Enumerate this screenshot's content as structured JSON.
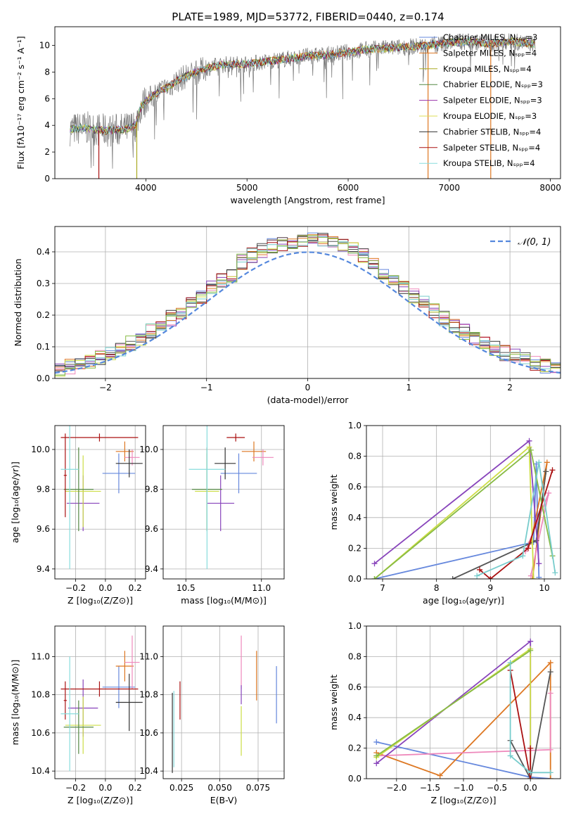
{
  "figure": {
    "title": "PLATE=1989, MJD=53772, FIBERID=0440, z=0.174",
    "series_colors": [
      "#6688dd",
      "#dd7722",
      "#ee88bb",
      "#555555",
      "#8844bb",
      "#ccdd44",
      "#333333",
      "#aa1111",
      "#77cccc",
      "#88bb44"
    ],
    "legend_colors": [
      "#6688dd",
      "#dd7722",
      "#aaaa22",
      "#558844",
      "#9933aa",
      "#dddd55",
      "#333333",
      "#aa1111",
      "#88dddd"
    ]
  },
  "chart_data": [
    {
      "id": "spectrum",
      "type": "line",
      "title": "PLATE=1989, MJD=53772, FIBERID=0440, z=0.174",
      "xlabel": "wavelength [Angstrom, rest frame]",
      "ylabel": "Flux [fλ10⁻¹⁷ erg cm⁻² s⁻¹ A⁻¹]",
      "xlim": [
        3100,
        8100
      ],
      "ylim": [
        0,
        11.4
      ],
      "xticks": [
        4000,
        5000,
        6000,
        7000,
        8000
      ],
      "yticks": [
        0,
        2,
        4,
        6,
        8,
        10
      ],
      "grid": false,
      "legend_position": "right",
      "continuum_x": [
        3250,
        3400,
        3600,
        3800,
        3900,
        3950,
        4000,
        4100,
        4200,
        4300,
        4400,
        4600,
        4800,
        5000,
        5200,
        5400,
        5600,
        5800,
        6000,
        6200,
        6400,
        6600,
        6800,
        7000,
        7200,
        7400,
        7600,
        7850
      ],
      "continuum_y": [
        3.7,
        3.8,
        3.6,
        3.7,
        4.0,
        5.4,
        5.8,
        6.4,
        6.8,
        7.3,
        7.7,
        8.3,
        8.6,
        8.6,
        8.8,
        9.0,
        9.2,
        9.3,
        9.5,
        9.7,
        9.8,
        9.9,
        10.0,
        10.2,
        10.3,
        10.1,
        10.3,
        10.1
      ],
      "legend": [
        "Chabrier MILES, Nₛₚₚ=3",
        "Salpeter MILES, Nₛₚₚ=4",
        "Kroupa MILES, Nₛₚₚ=4",
        "Chabrier ELODIE, Nₛₚₚ=3",
        "Salpeter ELODIE, Nₛₚₚ=3",
        "Kroupa ELODIE, Nₛₚₚ=3",
        "Chabrier STELIB, Nₛₚₚ=4",
        "Salpeter STELIB, Nₛₚₚ=4",
        "Kroupa STELIB, Nₛₚₚ=4"
      ]
    },
    {
      "id": "residuals",
      "type": "step",
      "xlabel": "(data-model)/error",
      "ylabel": "Normed distribution",
      "xlim": [
        -2.5,
        2.5
      ],
      "ylim": [
        0,
        0.48
      ],
      "xticks": [
        -2,
        -1,
        0,
        1,
        2
      ],
      "yticks": [
        0.0,
        0.1,
        0.2,
        0.3,
        0.4
      ],
      "grid": true,
      "legend": [
        "𝒩(0, 1)"
      ],
      "legend_position": "top-right"
    },
    {
      "id": "age-vs-Z",
      "type": "errorbar",
      "xlabel": "Z [log₁₀(Z/Z⊙)]",
      "ylabel": "age  [log₁₀(age/yr)]",
      "xlim": [
        -0.34,
        0.27
      ],
      "ylim": [
        9.35,
        10.12
      ],
      "xticks": [
        -0.2,
        0.0,
        0.2
      ],
      "yticks": [
        9.4,
        9.6,
        9.8,
        10.0
      ],
      "grid": true,
      "points": [
        {
          "x": 0.09,
          "xerr": 0.11,
          "y": 9.88,
          "yerr": 0.1,
          "color": "#6688dd"
        },
        {
          "x": 0.13,
          "xerr": 0.06,
          "y": 9.99,
          "yerr": 0.05,
          "color": "#dd7722"
        },
        {
          "x": 0.18,
          "xerr": 0.05,
          "y": 9.96,
          "yerr": 0.04,
          "color": "#ee88bb"
        },
        {
          "x": 0.16,
          "xerr": 0.09,
          "y": 9.93,
          "yerr": 0.07,
          "color": "#333333"
        },
        {
          "x": -0.15,
          "xerr": 0.11,
          "y": 9.73,
          "yerr": 0.14,
          "color": "#8844bb"
        },
        {
          "x": -0.15,
          "xerr": 0.12,
          "y": 9.79,
          "yerr": 0.18,
          "color": "#ccdd44"
        },
        {
          "x": -0.18,
          "xerr": 0.1,
          "y": 9.8,
          "yerr": 0.21,
          "color": "#558844"
        },
        {
          "x": -0.04,
          "xerr": 0.26,
          "y": 10.06,
          "yerr": 0.02,
          "color": "#aa1111"
        },
        {
          "x": -0.27,
          "xerr": 0.01,
          "y": 9.87,
          "yerr": 0.21,
          "color": "#aa1111"
        },
        {
          "x": -0.24,
          "xerr": 0.06,
          "y": 9.9,
          "yerr": 0.5,
          "color": "#88dddd"
        }
      ]
    },
    {
      "id": "age-vs-mass",
      "type": "errorbar",
      "xlabel": "mass [log₁₀(M/M⊙)]",
      "ylabel": "",
      "xlim": [
        10.35,
        11.15
      ],
      "ylim": [
        9.35,
        10.12
      ],
      "xticks": [
        10.5,
        11.0
      ],
      "yticks": [
        9.4,
        9.6,
        9.8,
        10.0
      ],
      "grid": true,
      "points": [
        {
          "x": 10.85,
          "xerr": 0.12,
          "y": 9.88,
          "yerr": 0.1,
          "color": "#6688dd"
        },
        {
          "x": 10.95,
          "xerr": 0.08,
          "y": 9.99,
          "yerr": 0.05,
          "color": "#dd7722"
        },
        {
          "x": 11.01,
          "xerr": 0.07,
          "y": 9.96,
          "yerr": 0.04,
          "color": "#ee88bb"
        },
        {
          "x": 10.76,
          "xerr": 0.07,
          "y": 9.93,
          "yerr": 0.08,
          "color": "#333333"
        },
        {
          "x": 10.73,
          "xerr": 0.09,
          "y": 9.73,
          "yerr": 0.14,
          "color": "#8844bb"
        },
        {
          "x": 10.64,
          "xerr": 0.08,
          "y": 9.79,
          "yerr": 0.19,
          "color": "#ccdd44"
        },
        {
          "x": 10.64,
          "xerr": 0.1,
          "y": 9.8,
          "yerr": 0.21,
          "color": "#558844"
        },
        {
          "x": 10.83,
          "xerr": 0.06,
          "y": 10.06,
          "yerr": 0.02,
          "color": "#aa1111"
        },
        {
          "x": 10.64,
          "xerr": 0.12,
          "y": 9.9,
          "yerr": 0.5,
          "color": "#88dddd"
        }
      ]
    },
    {
      "id": "weight-vs-age",
      "type": "line",
      "xlabel": "age  [log₁₀(age/yr)]",
      "ylabel": "mass weight",
      "xlim": [
        6.7,
        10.3
      ],
      "ylim": [
        0,
        1.0
      ],
      "xticks": [
        7,
        8,
        9,
        10
      ],
      "yticks": [
        0.0,
        0.2,
        0.4,
        0.6,
        0.8,
        1.0
      ],
      "grid": true,
      "series": [
        {
          "color": "#6688dd",
          "x": [
            6.85,
            9.8,
            9.85,
            9.9
          ],
          "y": [
            0.0,
            0.24,
            0.75,
            0.01
          ]
        },
        {
          "color": "#dd7722",
          "x": [
            9.78,
            10.05,
            9.75
          ],
          "y": [
            0.0,
            0.76,
            0.24
          ]
        },
        {
          "color": "#ee88bb",
          "x": [
            9.75,
            10.08,
            9.65
          ],
          "y": [
            0.02,
            0.56,
            0.18
          ]
        },
        {
          "color": "#555555",
          "x": [
            8.3,
            9.85,
            10.03
          ],
          "y": [
            0.0,
            0.25,
            0.7
          ]
        },
        {
          "color": "#8844bb",
          "x": [
            6.85,
            9.72,
            9.9
          ],
          "y": [
            0.1,
            0.9,
            0.1
          ]
        },
        {
          "color": "#ccdd44",
          "x": [
            6.85,
            9.72,
            9.8
          ],
          "y": [
            0.0,
            0.86,
            0.0
          ]
        },
        {
          "color": "#88bb44",
          "x": [
            6.85,
            9.75,
            10.15
          ],
          "y": [
            0.0,
            0.84,
            0.15
          ]
        },
        {
          "color": "#aa1111",
          "x": [
            8.8,
            9.0,
            9.7,
            10.15
          ],
          "y": [
            0.06,
            0.0,
            0.2,
            0.71
          ]
        },
        {
          "color": "#77cccc",
          "x": [
            8.75,
            9.6,
            9.9,
            10.2
          ],
          "y": [
            0.02,
            0.15,
            0.76,
            0.04
          ]
        }
      ]
    },
    {
      "id": "mass-vs-Z",
      "type": "errorbar",
      "xlabel": "Z [log₁₀(Z/Z⊙)]",
      "ylabel": "mass [log₁₀(M/M⊙)]",
      "xlim": [
        -0.34,
        0.27
      ],
      "ylim": [
        10.36,
        11.16
      ],
      "xticks": [
        -0.2,
        0.0,
        0.2
      ],
      "yticks": [
        10.4,
        10.6,
        10.8,
        11.0
      ],
      "grid": true,
      "points": [
        {
          "x": 0.09,
          "xerr": 0.11,
          "y": 10.84,
          "yerr": 0.11,
          "color": "#6688dd"
        },
        {
          "x": 0.13,
          "xerr": 0.06,
          "y": 10.95,
          "yerr": 0.08,
          "color": "#dd7722"
        },
        {
          "x": 0.18,
          "xerr": 0.05,
          "y": 10.97,
          "yerr": 0.14,
          "color": "#ee88bb"
        },
        {
          "x": 0.16,
          "xerr": 0.09,
          "y": 10.76,
          "yerr": 0.15,
          "color": "#333333"
        },
        {
          "x": -0.15,
          "xerr": 0.1,
          "y": 10.73,
          "yerr": 0.15,
          "color": "#8844bb"
        },
        {
          "x": -0.15,
          "xerr": 0.12,
          "y": 10.64,
          "yerr": 0.15,
          "color": "#ccdd44"
        },
        {
          "x": -0.18,
          "xerr": 0.1,
          "y": 10.63,
          "yerr": 0.14,
          "color": "#558844"
        },
        {
          "x": -0.04,
          "xerr": 0.26,
          "y": 10.83,
          "yerr": 0.04,
          "color": "#aa1111"
        },
        {
          "x": -0.27,
          "xerr": 0.01,
          "y": 10.77,
          "yerr": 0.1,
          "color": "#aa1111"
        },
        {
          "x": -0.24,
          "xerr": 0.06,
          "y": 10.7,
          "yerr": 0.3,
          "color": "#88dddd"
        }
      ]
    },
    {
      "id": "mass-vs-ebv",
      "type": "errorbar",
      "xlabel": "E(B-V)",
      "ylabel": "",
      "xlim": [
        0.013,
        0.092
      ],
      "ylim": [
        10.36,
        11.16
      ],
      "xticks": [
        0.025,
        0.05,
        0.075
      ],
      "yticks": [
        10.4,
        10.6,
        10.8,
        11.0
      ],
      "grid": true,
      "points": [
        {
          "x": 0.087,
          "xerr": 0,
          "y": 10.8,
          "yerr": 0.15,
          "color": "#6688dd"
        },
        {
          "x": 0.074,
          "xerr": 0,
          "y": 10.9,
          "yerr": 0.13,
          "color": "#dd7722"
        },
        {
          "x": 0.064,
          "xerr": 0,
          "y": 10.97,
          "yerr": 0.14,
          "color": "#ee88bb"
        },
        {
          "x": 0.019,
          "xerr": 0,
          "y": 10.6,
          "yerr": 0.21,
          "color": "#333333"
        },
        {
          "x": 0.064,
          "xerr": 0,
          "y": 10.8,
          "yerr": 0.05,
          "color": "#8844bb"
        },
        {
          "x": 0.064,
          "xerr": 0,
          "y": 10.61,
          "yerr": 0.13,
          "color": "#ccdd44"
        },
        {
          "x": 0.024,
          "xerr": 0,
          "y": 10.77,
          "yerr": 0.1,
          "color": "#aa1111"
        },
        {
          "x": 0.02,
          "xerr": 0,
          "y": 10.62,
          "yerr": 0.2,
          "color": "#88dddd"
        }
      ]
    },
    {
      "id": "weight-vs-Z",
      "type": "line",
      "xlabel": "Z [log₁₀(Z/Z⊙)]",
      "ylabel": "mass weight",
      "xlim": [
        -2.45,
        0.45
      ],
      "ylim": [
        0,
        1.0
      ],
      "xticks": [
        -2.0,
        -1.5,
        -1.0,
        -0.5,
        0.0
      ],
      "yticks": [
        0.0,
        0.2,
        0.4,
        0.6,
        0.8,
        1.0
      ],
      "grid": true,
      "series": [
        {
          "color": "#6688dd",
          "x": [
            -2.3,
            0.0,
            0.3
          ],
          "y": [
            0.24,
            0.01,
            0.0
          ]
        },
        {
          "color": "#dd7722",
          "x": [
            -2.3,
            -1.35,
            0.3,
            0.3
          ],
          "y": [
            0.17,
            0.02,
            0.76,
            0.0
          ]
        },
        {
          "color": "#ee88bb",
          "x": [
            -2.3,
            0.3,
            0.3
          ],
          "y": [
            0.15,
            0.19,
            0.56
          ]
        },
        {
          "color": "#555555",
          "x": [
            -0.3,
            0.0,
            0.3
          ],
          "y": [
            0.25,
            0.0,
            0.7
          ]
        },
        {
          "color": "#8844bb",
          "x": [
            -2.3,
            0.0,
            0.0
          ],
          "y": [
            0.1,
            0.9,
            0.0
          ]
        },
        {
          "color": "#ccdd44",
          "x": [
            -2.3,
            0.0,
            0.0
          ],
          "y": [
            0.14,
            0.85,
            0.0
          ]
        },
        {
          "color": "#88bb44",
          "x": [
            -2.3,
            0.0
          ],
          "y": [
            0.15,
            0.84
          ]
        },
        {
          "color": "#aa1111",
          "x": [
            -0.3,
            0.0,
            0.0
          ],
          "y": [
            0.71,
            0.0,
            0.2
          ]
        },
        {
          "color": "#77cccc",
          "x": [
            -0.3,
            -0.3,
            0.0,
            0.3
          ],
          "y": [
            0.76,
            0.15,
            0.04,
            0.04
          ]
        }
      ]
    }
  ]
}
